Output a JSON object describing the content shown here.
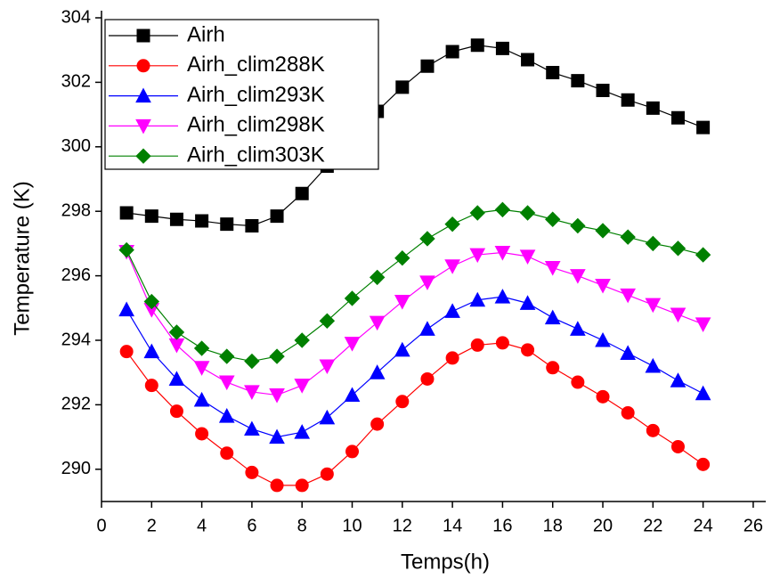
{
  "chart_data": {
    "type": "line",
    "x_label": "Temps(h)",
    "y_label": "Temperature (K)",
    "x": [
      1,
      2,
      3,
      4,
      5,
      6,
      7,
      8,
      9,
      10,
      11,
      12,
      13,
      14,
      15,
      16,
      17,
      18,
      19,
      20,
      21,
      22,
      23,
      24
    ],
    "xlim": [
      0,
      26.5
    ],
    "xticks": [
      0,
      2,
      4,
      6,
      8,
      10,
      12,
      14,
      16,
      18,
      20,
      22,
      24,
      26
    ],
    "ylim": [
      289,
      304
    ],
    "yticks": [
      290,
      292,
      294,
      296,
      298,
      300,
      302,
      304
    ],
    "legend": "upper-left",
    "series": [
      {
        "name": "Airh",
        "color": "#000000",
        "marker": "square",
        "values": [
          297.95,
          297.85,
          297.75,
          297.7,
          297.6,
          297.55,
          297.85,
          298.55,
          299.4,
          300.3,
          301.1,
          301.85,
          302.5,
          302.95,
          303.15,
          303.05,
          302.7,
          302.3,
          302.05,
          301.75,
          301.45,
          301.2,
          300.9,
          300.6
        ]
      },
      {
        "name": "Airh_clim288K",
        "color": "#ff0000",
        "marker": "circle",
        "values": [
          293.65,
          292.6,
          291.8,
          291.1,
          290.5,
          289.9,
          289.5,
          289.5,
          289.85,
          290.55,
          291.4,
          292.1,
          292.8,
          293.45,
          293.85,
          293.92,
          293.7,
          293.15,
          292.7,
          292.25,
          291.75,
          291.2,
          290.7,
          290.15
        ]
      },
      {
        "name": "Airh_clim293K",
        "color": "#0000ff",
        "marker": "triangle-up",
        "values": [
          294.95,
          293.65,
          292.8,
          292.15,
          291.65,
          291.25,
          291.0,
          291.15,
          291.6,
          292.3,
          293.0,
          293.7,
          294.35,
          294.9,
          295.25,
          295.35,
          295.15,
          294.7,
          294.35,
          294.0,
          293.6,
          293.2,
          292.75,
          292.35
        ]
      },
      {
        "name": "Airh_clim298K",
        "color": "#ff00ff",
        "marker": "triangle-down",
        "values": [
          296.75,
          294.95,
          293.85,
          293.15,
          292.7,
          292.4,
          292.3,
          292.6,
          293.2,
          293.9,
          294.55,
          295.2,
          295.8,
          296.3,
          296.65,
          296.72,
          296.6,
          296.25,
          296.0,
          295.7,
          295.4,
          295.1,
          294.8,
          294.5
        ]
      },
      {
        "name": "Airh_clim303K",
        "color": "#008000",
        "marker": "diamond",
        "values": [
          296.8,
          295.2,
          294.25,
          293.75,
          293.5,
          293.35,
          293.5,
          294.0,
          294.6,
          295.3,
          295.95,
          296.55,
          297.15,
          297.6,
          297.95,
          298.05,
          297.95,
          297.75,
          297.55,
          297.4,
          297.2,
          297.0,
          296.85,
          296.65
        ]
      }
    ]
  }
}
